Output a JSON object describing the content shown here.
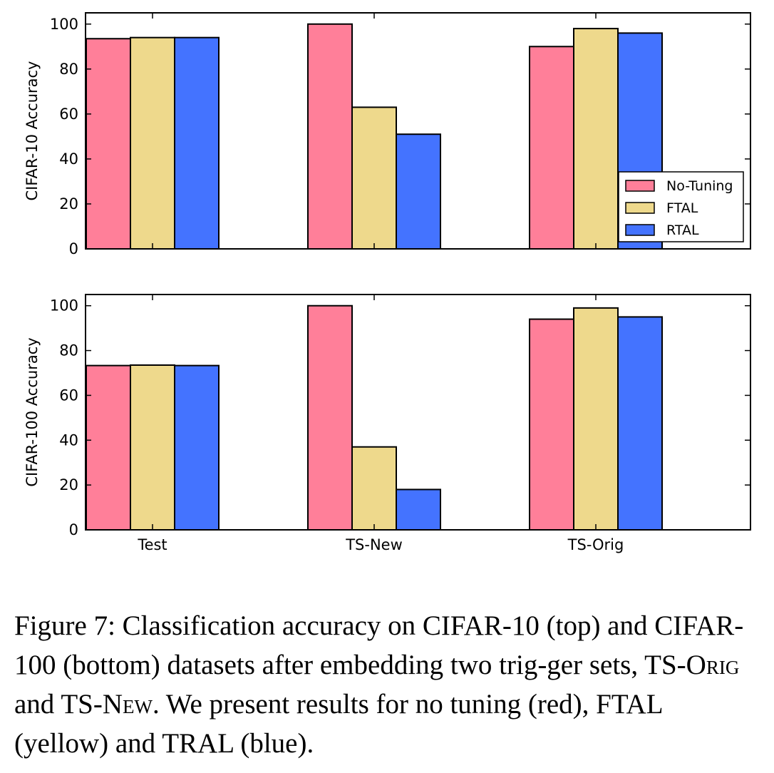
{
  "colors": {
    "No-Tuning": "#ff7f99",
    "FTAL": "#eed98c",
    "RTAL": "#4473ff"
  },
  "chart_data": [
    {
      "type": "bar",
      "categories": [
        "Test",
        "TS-New",
        "TS-Orig"
      ],
      "ylabel": "CIFAR-10 Accuracy",
      "xlabel": "",
      "ylim": [
        0,
        105
      ],
      "yticks": [
        0,
        20,
        40,
        60,
        80,
        100
      ],
      "grid": false,
      "legend": "lower-right",
      "series": [
        {
          "name": "No-Tuning",
          "values": [
            93.5,
            100,
            90
          ]
        },
        {
          "name": "FTAL",
          "values": [
            94,
            63,
            98
          ]
        },
        {
          "name": "RTAL",
          "values": [
            94,
            51,
            96
          ]
        }
      ]
    },
    {
      "type": "bar",
      "categories": [
        "Test",
        "TS-New",
        "TS-Orig"
      ],
      "ylabel": "CIFAR-100 Accuracy",
      "xlabel": "",
      "ylim": [
        0,
        105
      ],
      "yticks": [
        0,
        20,
        40,
        60,
        80,
        100
      ],
      "grid": false,
      "series": [
        {
          "name": "No-Tuning",
          "values": [
            73.3,
            100,
            94
          ]
        },
        {
          "name": "FTAL",
          "values": [
            73.5,
            37,
            99
          ]
        },
        {
          "name": "RTAL",
          "values": [
            73.3,
            18,
            95
          ]
        }
      ]
    }
  ],
  "caption": {
    "lead": "Figure 7: Classification accuracy on CIFAR-10 (top) and CIFAR-100 (bottom) datasets after embedding two trig-ger sets, ",
    "ts_prefix_1": "TS-",
    "ts_sc_1": "Orig",
    "mid": " and ",
    "ts_prefix_2": "TS-",
    "ts_sc_2": "New",
    "tail": ". We present results for no tuning (red), FTAL (yellow) and TRAL (blue)."
  }
}
